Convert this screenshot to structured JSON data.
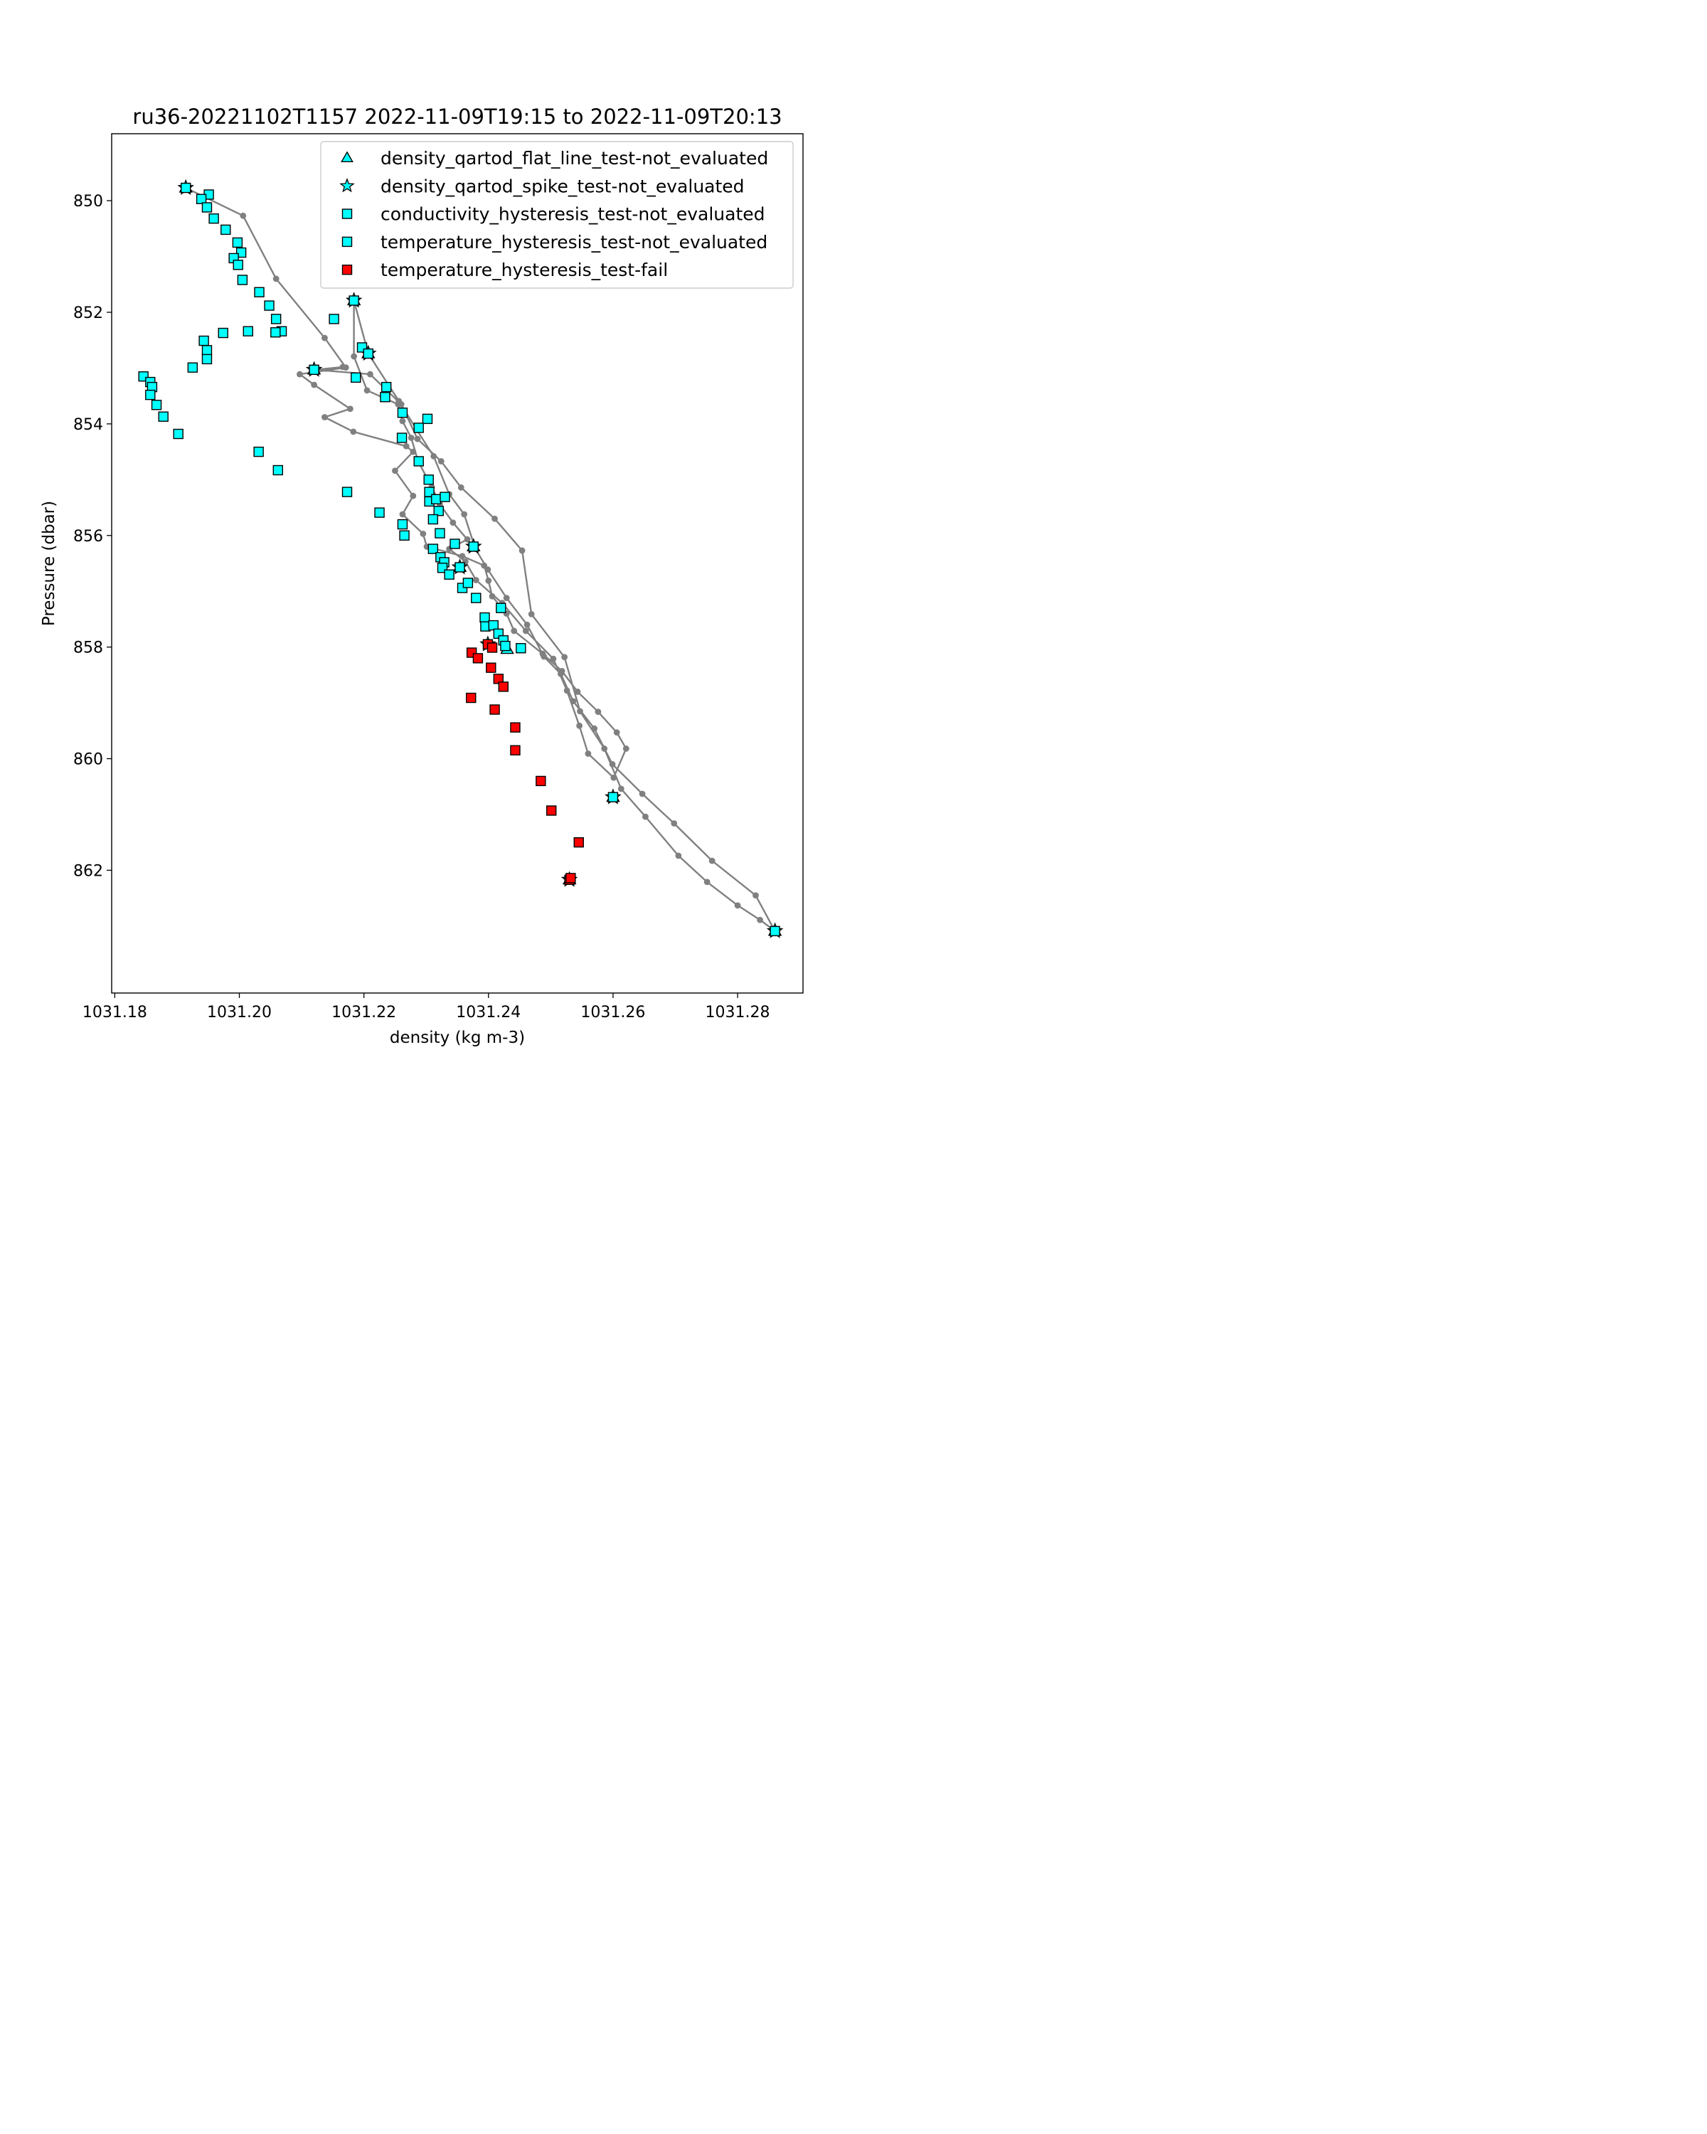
{
  "chart_data": {
    "type": "scatter",
    "title": "ru36-20221102T1157 2022-11-09T19:15 to 2022-11-09T20:13",
    "xlabel": "density (kg m-3)",
    "ylabel": "Pressure (dbar)",
    "xlim": [
      1031.1795,
      1031.2905
    ],
    "ylim": [
      864.2,
      848.8
    ],
    "y_inverted": true,
    "grid": false,
    "legend_position": "top-right",
    "x_ticks": [
      "1031.18",
      "1031.20",
      "1031.22",
      "1031.24",
      "1031.26",
      "1031.28"
    ],
    "x_tick_values": [
      1031.18,
      1031.2,
      1031.22,
      1031.24,
      1031.26,
      1031.28
    ],
    "y_ticks": [
      "850",
      "852",
      "854",
      "856",
      "858",
      "860",
      "862"
    ],
    "y_tick_values": [
      850,
      852,
      854,
      856,
      858,
      860,
      862
    ],
    "colors": {
      "line": "#808080",
      "cyan": "#00ffff",
      "red": "#ff0000",
      "edge": "#000000"
    },
    "profile": [
      [
        1031.1914,
        849.77
      ],
      [
        1031.2006,
        850.27
      ],
      [
        1031.2059,
        851.4
      ],
      [
        1031.2137,
        852.46
      ],
      [
        1031.2171,
        852.99
      ],
      [
        1031.2097,
        853.11
      ],
      [
        1031.212,
        853.3
      ],
      [
        1031.2178,
        853.73
      ],
      [
        1031.2137,
        853.88
      ],
      [
        1031.2183,
        854.14
      ],
      [
        1031.2268,
        854.4
      ],
      [
        1031.2279,
        854.5
      ],
      [
        1031.225,
        854.84
      ],
      [
        1031.2279,
        855.29
      ],
      [
        1031.2262,
        855.62
      ],
      [
        1031.2295,
        855.97
      ],
      [
        1031.2301,
        856.2
      ],
      [
        1031.2358,
        856.37
      ],
      [
        1031.2393,
        856.54
      ],
      [
        1031.24,
        856.81
      ],
      [
        1031.2406,
        857.09
      ],
      [
        1031.2429,
        857.4
      ],
      [
        1031.2441,
        857.71
      ],
      [
        1031.2487,
        858.12
      ],
      [
        1031.2518,
        858.43
      ],
      [
        1031.2543,
        858.8
      ],
      [
        1031.2576,
        859.16
      ],
      [
        1031.2606,
        859.53
      ],
      [
        1031.2621,
        859.82
      ],
      [
        1031.2601,
        860.34
      ],
      [
        1031.256,
        859.91
      ],
      [
        1031.2546,
        859.41
      ],
      [
        1031.2526,
        858.78
      ],
      [
        1031.2504,
        858.21
      ],
      [
        1031.246,
        857.71
      ],
      [
        1031.2422,
        857.21
      ],
      [
        1031.238,
        856.8
      ],
      [
        1031.2363,
        856.47
      ],
      [
        1031.2337,
        856.24
      ],
      [
        1031.2366,
        856.07
      ],
      [
        1031.2343,
        855.77
      ],
      [
        1031.2322,
        855.44
      ],
      [
        1031.2309,
        855.13
      ],
      [
        1031.2287,
        854.67
      ],
      [
        1031.2276,
        854.25
      ],
      [
        1031.2262,
        853.95
      ],
      [
        1031.2255,
        853.65
      ],
      [
        1031.2205,
        853.4
      ],
      [
        1031.2184,
        852.79
      ],
      [
        1031.2184,
        851.79
      ],
      [
        1031.2207,
        852.74
      ],
      [
        1031.2256,
        853.59
      ],
      [
        1031.2285,
        854.11
      ],
      [
        1031.2312,
        854.58
      ],
      [
        1031.2337,
        855.26
      ],
      [
        1031.2361,
        855.62
      ],
      [
        1031.2379,
        856.24
      ],
      [
        1031.2399,
        856.61
      ],
      [
        1031.2429,
        857.12
      ],
      [
        1031.2462,
        857.6
      ],
      [
        1031.2489,
        858.17
      ],
      [
        1031.2516,
        858.48
      ],
      [
        1031.2536,
        858.97
      ],
      [
        1031.257,
        859.46
      ],
      [
        1031.2599,
        860.1
      ],
      [
        1031.2647,
        860.63
      ],
      [
        1031.2698,
        861.16
      ],
      [
        1031.2759,
        861.83
      ],
      [
        1031.2829,
        862.45
      ],
      [
        1031.286,
        863.09
      ],
      [
        1031.2836,
        862.89
      ],
      [
        1031.28,
        862.63
      ],
      [
        1031.2751,
        862.21
      ],
      [
        1031.2705,
        861.74
      ],
      [
        1031.2652,
        861.04
      ],
      [
        1031.2613,
        860.54
      ],
      [
        1031.2586,
        859.82
      ],
      [
        1031.2547,
        859.15
      ],
      [
        1031.2522,
        858.18
      ],
      [
        1031.2469,
        857.41
      ],
      [
        1031.2454,
        856.27
      ],
      [
        1031.241,
        855.7
      ],
      [
        1031.2356,
        855.14
      ],
      [
        1031.2324,
        854.67
      ],
      [
        1031.2286,
        854.27
      ],
      [
        1031.226,
        853.65
      ],
      [
        1031.221,
        853.11
      ],
      [
        1031.2122,
        853.03
      ],
      [
        1031.2166,
        852.98
      ]
    ],
    "series": [
      {
        "name": "density_qartod_flat_line_test-not_evaluated",
        "marker": "triangle",
        "color": "#00ffff",
        "points": [
          [
            1031.1914,
            849.77
          ],
          [
            1031.2184,
            851.79
          ],
          [
            1031.2207,
            852.74
          ],
          [
            1031.212,
            853.03
          ],
          [
            1031.2376,
            856.2
          ],
          [
            1031.2354,
            856.57
          ],
          [
            1031.243,
            858.04
          ],
          [
            1031.253,
            862.17
          ],
          [
            1031.26,
            860.69
          ],
          [
            1031.286,
            863.09
          ]
        ]
      },
      {
        "name": "density_qartod_spike_test-not_evaluated",
        "marker": "star",
        "color": "#00ffff",
        "points": [
          [
            1031.1914,
            849.77
          ],
          [
            1031.2184,
            851.79
          ],
          [
            1031.2207,
            852.74
          ],
          [
            1031.212,
            853.03
          ],
          [
            1031.2376,
            856.2
          ],
          [
            1031.2354,
            856.57
          ],
          [
            1031.2399,
            857.95
          ],
          [
            1031.253,
            862.17
          ],
          [
            1031.26,
            860.69
          ],
          [
            1031.286,
            863.09
          ]
        ]
      },
      {
        "name": "conductivity_hysteresis_test-not_evaluated",
        "marker": "square",
        "color": "#00ffff",
        "points": [
          [
            1031.1914,
            849.77
          ],
          [
            1031.1951,
            849.89
          ],
          [
            1031.1939,
            849.97
          ],
          [
            1031.1948,
            850.12
          ],
          [
            1031.1959,
            850.32
          ],
          [
            1031.1978,
            850.52
          ],
          [
            1031.1997,
            850.75
          ],
          [
            1031.2003,
            850.93
          ],
          [
            1031.1991,
            851.03
          ],
          [
            1031.1998,
            851.15
          ],
          [
            1031.2005,
            851.42
          ],
          [
            1031.2032,
            851.64
          ],
          [
            1031.2048,
            851.88
          ],
          [
            1031.2059,
            852.12
          ],
          [
            1031.2068,
            852.34
          ],
          [
            1031.2058,
            852.36
          ],
          [
            1031.2014,
            852.34
          ],
          [
            1031.1974,
            852.37
          ],
          [
            1031.1943,
            852.51
          ],
          [
            1031.1948,
            852.68
          ],
          [
            1031.1948,
            852.84
          ],
          [
            1031.1925,
            852.99
          ],
          [
            1031.1846,
            853.15
          ],
          [
            1031.1857,
            853.25
          ],
          [
            1031.186,
            853.34
          ],
          [
            1031.1857,
            853.48
          ],
          [
            1031.1867,
            853.66
          ],
          [
            1031.1878,
            853.87
          ],
          [
            1031.1902,
            854.18
          ],
          [
            1031.2031,
            854.5
          ],
          [
            1031.2062,
            854.83
          ],
          [
            1031.2173,
            855.22
          ],
          [
            1031.2225,
            855.59
          ],
          [
            1031.2262,
            855.8
          ],
          [
            1031.2265,
            856.0
          ],
          [
            1031.2311,
            856.24
          ],
          [
            1031.2323,
            856.39
          ],
          [
            1031.2329,
            856.48
          ],
          [
            1031.2326,
            856.58
          ],
          [
            1031.2337,
            856.7
          ],
          [
            1031.2354,
            856.57
          ],
          [
            1031.2358,
            856.94
          ],
          [
            1031.2367,
            856.85
          ],
          [
            1031.238,
            857.12
          ],
          [
            1031.242,
            857.3
          ],
          [
            1031.2394,
            857.47
          ],
          [
            1031.2395,
            857.63
          ],
          [
            1031.2408,
            857.61
          ],
          [
            1031.2416,
            857.76
          ],
          [
            1031.2424,
            857.88
          ],
          [
            1031.2427,
            857.98
          ],
          [
            1031.2452,
            858.02
          ],
          [
            1031.212,
            853.03
          ],
          [
            1031.2187,
            853.17
          ],
          [
            1031.2236,
            853.34
          ],
          [
            1031.2234,
            853.52
          ],
          [
            1031.2262,
            853.8
          ],
          [
            1031.2302,
            853.91
          ],
          [
            1031.2288,
            854.07
          ],
          [
            1031.2261,
            854.25
          ],
          [
            1031.2288,
            854.67
          ],
          [
            1031.2304,
            855.0
          ],
          [
            1031.2305,
            855.22
          ],
          [
            1031.2305,
            855.39
          ],
          [
            1031.2316,
            855.35
          ],
          [
            1031.233,
            855.31
          ],
          [
            1031.232,
            855.56
          ],
          [
            1031.2311,
            855.71
          ],
          [
            1031.2322,
            855.96
          ],
          [
            1031.2346,
            856.15
          ],
          [
            1031.2376,
            856.2
          ],
          [
            1031.2152,
            852.12
          ],
          [
            1031.2184,
            851.79
          ],
          [
            1031.2197,
            852.63
          ],
          [
            1031.2207,
            852.74
          ]
        ]
      },
      {
        "name": "temperature_hysteresis_test-not_evaluated",
        "marker": "square",
        "color": "#00ffff",
        "points": [
          [
            1031.26,
            860.69
          ],
          [
            1031.286,
            863.09
          ]
        ]
      },
      {
        "name": "temperature_hysteresis_test-fail",
        "marker": "square",
        "color": "#ff0000",
        "points": [
          [
            1031.2399,
            857.95
          ],
          [
            1031.2406,
            858.01
          ],
          [
            1031.2373,
            858.1
          ],
          [
            1031.2383,
            858.2
          ],
          [
            1031.2404,
            858.37
          ],
          [
            1031.2416,
            858.57
          ],
          [
            1031.2424,
            858.71
          ],
          [
            1031.2372,
            858.91
          ],
          [
            1031.241,
            859.12
          ],
          [
            1031.2443,
            859.44
          ],
          [
            1031.2443,
            859.85
          ],
          [
            1031.2484,
            860.4
          ],
          [
            1031.2501,
            860.93
          ],
          [
            1031.2545,
            861.5
          ],
          [
            1031.253,
            862.17
          ],
          [
            1031.2532,
            862.14
          ]
        ]
      }
    ]
  }
}
